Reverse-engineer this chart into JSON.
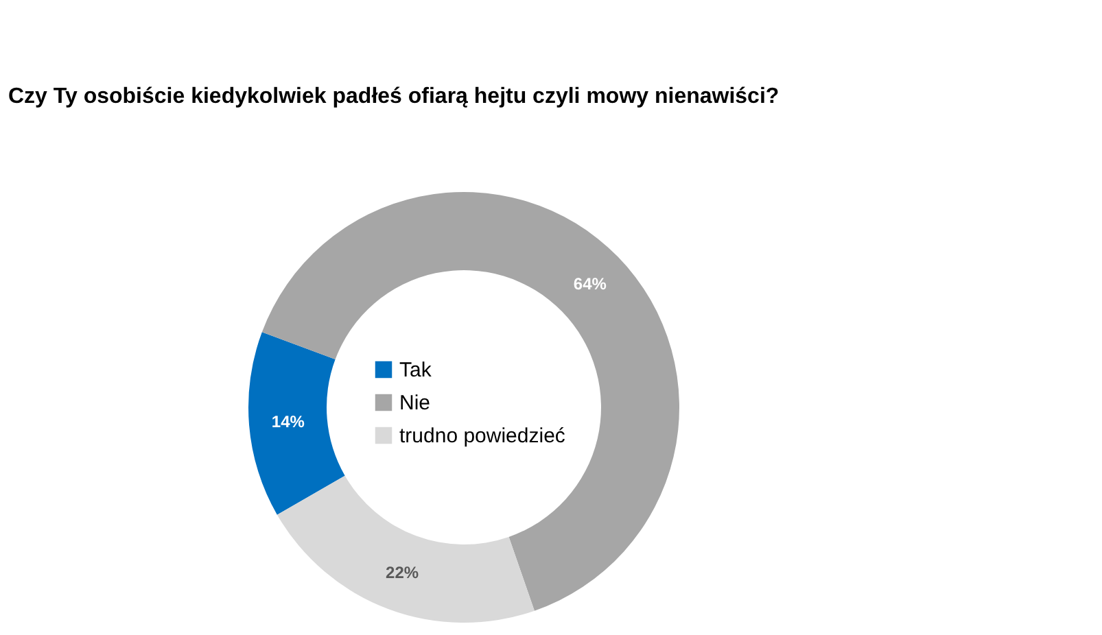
{
  "chart_data": {
    "type": "donut",
    "title": "Czy Ty osobiście kiedykolwiek padłeś ofiarą hejtu czyli mowy nienawiści?",
    "categories": [
      "Tak",
      "Nie",
      "trudno powiedzieć"
    ],
    "values": [
      14,
      64,
      22
    ],
    "colors": [
      "#0070c0",
      "#a6a6a6",
      "#d9d9d9"
    ],
    "value_labels": [
      "14%",
      "64%",
      "22%"
    ],
    "legend": "center"
  }
}
